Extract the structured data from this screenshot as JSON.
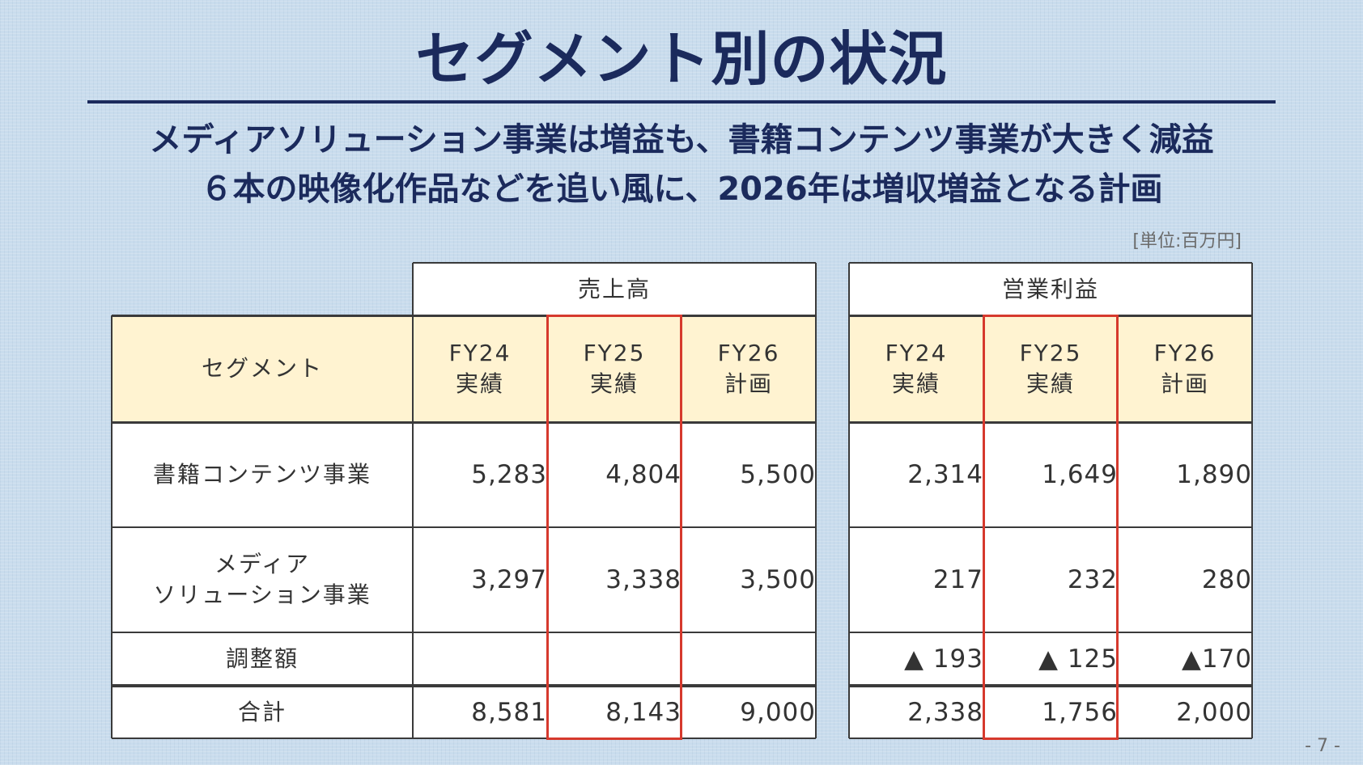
{
  "title": "セグメント別の状況",
  "subtitle_line1": "メディアソリューション事業は増益も、書籍コンテンツ事業が大きく減益",
  "subtitle_line2": "６本の映像化作品などを追い風に、2026年は増収増益となる計画",
  "unit_note": "[単位:百万円]",
  "page_number": "- 7 -",
  "highlight_color": "#d6392d",
  "header_fill": "#fff3d1",
  "title_color": "#1b2a5c",
  "sales_table": {
    "group_header": "売上高",
    "columns": [
      {
        "label": "FY24\n実績"
      },
      {
        "label": "FY25\n実績"
      },
      {
        "label": "FY26\n計画"
      }
    ]
  },
  "profit_table": {
    "group_header": "営業利益",
    "columns": [
      {
        "label": "FY24\n実績"
      },
      {
        "label": "FY25\n実績"
      },
      {
        "label": "FY26\n計画"
      }
    ]
  },
  "segment_header": "セグメント",
  "rows": [
    {
      "segment": "書籍コンテンツ事業",
      "sales": [
        "5,283",
        "4,804",
        "5,500"
      ],
      "profit": [
        "2,314",
        "1,649",
        "1,890"
      ]
    },
    {
      "segment": "メディア\nソリューション事業",
      "sales": [
        "3,297",
        "3,338",
        "3,500"
      ],
      "profit": [
        "217",
        "232",
        "280"
      ]
    },
    {
      "segment": "調整額",
      "sales": [
        "",
        "",
        ""
      ],
      "profit": [
        "▲ 193",
        "▲ 125",
        "▲170"
      ]
    },
    {
      "segment": "合計",
      "sales": [
        "8,581",
        "8,143",
        "9,000"
      ],
      "profit": [
        "2,338",
        "1,756",
        "2,000"
      ]
    }
  ]
}
